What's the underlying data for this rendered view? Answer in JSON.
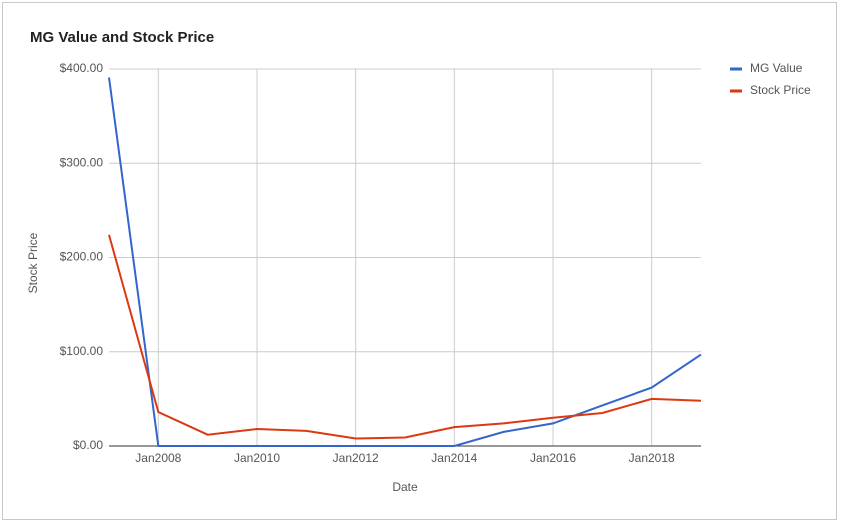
{
  "chart_data": {
    "type": "line",
    "title": "MG Value and Stock Price",
    "x_label": "Date",
    "y_label": "Stock Price",
    "x": [
      2007,
      2008,
      2009,
      2010,
      2011,
      2012,
      2013,
      2014,
      2015,
      2016,
      2017,
      2018,
      2019
    ],
    "xlim": [
      2007,
      2019
    ],
    "xticks": [
      {
        "value": 2008,
        "label": "Jan2008"
      },
      {
        "value": 2010,
        "label": "Jan2010"
      },
      {
        "value": 2012,
        "label": "Jan2012"
      },
      {
        "value": 2014,
        "label": "Jan2014"
      },
      {
        "value": 2016,
        "label": "Jan2016"
      },
      {
        "value": 2018,
        "label": "Jan2018"
      }
    ],
    "ylim": [
      0,
      400
    ],
    "yticks": [
      {
        "value": 0,
        "label": "$0.00"
      },
      {
        "value": 100,
        "label": "$100.00"
      },
      {
        "value": 200,
        "label": "$200.00"
      },
      {
        "value": 300,
        "label": "$300.00"
      },
      {
        "value": 400,
        "label": "$400.00"
      }
    ],
    "grid": true,
    "legend": "right",
    "series": [
      {
        "name": "MG Value",
        "color": "#3366cc",
        "values": [
          391,
          0,
          0,
          0,
          0,
          0,
          0,
          0,
          15,
          24,
          43,
          62,
          97
        ]
      },
      {
        "name": "Stock Price",
        "color": "#dc3912",
        "values": [
          224,
          36,
          12,
          18,
          16,
          8,
          9,
          20,
          24,
          30,
          35,
          50,
          48
        ]
      }
    ]
  }
}
